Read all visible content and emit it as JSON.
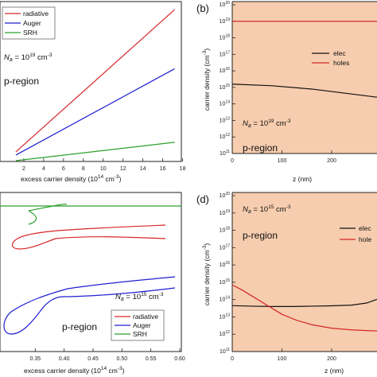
{
  "chart_data": [
    {
      "type": "line",
      "panel": "a",
      "xlabel": "excess carrier density (10",
      "xlabel_exp": "14",
      "xlabel_tail": " cm",
      "xlabel_unit_exp": "-3",
      "xlabel_close": ")",
      "xlim": [
        0,
        18
      ],
      "x_ticks": [
        "2",
        "4",
        "6",
        "8",
        "10",
        "12",
        "14",
        "16",
        "18"
      ],
      "annotation": {
        "prefix": "N",
        "sub": "a",
        "mid": " = 10",
        "sup": "19",
        "tail": " cm",
        "unit_sup": "-3"
      },
      "region_label": "p-region",
      "series": [
        {
          "name": "radiative",
          "color": "#d62728",
          "x": [
            1.2,
            17.2
          ],
          "y": [
            0.06,
            0.95
          ]
        },
        {
          "name": "Auger",
          "color": "#1f1fd1",
          "x": [
            1.2,
            17.2
          ],
          "y": [
            0.04,
            0.58
          ]
        },
        {
          "name": "SRH",
          "color": "#2ca02c",
          "x": [
            1.2,
            17.2
          ],
          "y": [
            0.005,
            0.12
          ]
        }
      ]
    },
    {
      "type": "line",
      "panel": "b",
      "panel_label": "(b)",
      "ylabel": "carrier density (cm",
      "ylabel_exp": "-3",
      "ylabel_close": ")",
      "xlabel": "z (nm)",
      "xlim": [
        0,
        320
      ],
      "ylim_log10": [
        11,
        20
      ],
      "x_ticks": [
        "0",
        "100",
        "200",
        "30"
      ],
      "y_ticks": [
        "20",
        "19",
        "18",
        "17",
        "16",
        "15",
        "14",
        "13",
        "12",
        "11"
      ],
      "y_tick_base": "10",
      "annotation": {
        "prefix": "N",
        "sub": "a",
        "mid": " = 10",
        "sup": "19",
        "tail": " cm",
        "unit_sup": "-3"
      },
      "region_label": "p-region",
      "legend_placement": "right",
      "series": [
        {
          "name": "elec",
          "color": "#111111",
          "x": [
            0,
            80,
            160,
            240,
            320
          ],
          "log10_y": [
            15.2,
            15.1,
            14.9,
            14.6,
            14.3
          ]
        },
        {
          "name": "holes",
          "color": "#d62728",
          "x": [
            0,
            320
          ],
          "log10_y": [
            19.0,
            19.0
          ]
        }
      ]
    },
    {
      "type": "line",
      "panel": "c",
      "xlabel": "excess carrier density (10",
      "xlabel_exp": "14",
      "xlabel_tail": " cm",
      "xlabel_unit_exp": "-3",
      "xlabel_close": ")",
      "xlim": [
        0.3,
        0.6
      ],
      "x_ticks": [
        "0.35",
        "0.40",
        "0.45",
        "0.50",
        "0.55",
        "0.60"
      ],
      "annotation": {
        "prefix": "N",
        "sub": "a",
        "mid": " = 10",
        "sup": "15",
        "tail": " cm",
        "unit_sup": "-3"
      },
      "region_label": "p-region",
      "legend_placement": "bottom-right",
      "series": [
        {
          "name": "radiative",
          "color": "#d62728"
        },
        {
          "name": "Auger",
          "color": "#1f1fd1"
        },
        {
          "name": "SRH",
          "color": "#2ca02c"
        }
      ]
    },
    {
      "type": "line",
      "panel": "d",
      "panel_label": "(d)",
      "ylabel": "carrier density (cm",
      "ylabel_exp": "-3",
      "ylabel_close": ")",
      "xlabel": "z (nm)",
      "xlim": [
        0,
        320
      ],
      "ylim_log10": [
        11,
        20
      ],
      "x_ticks": [
        "0",
        "100",
        "200",
        "3"
      ],
      "y_ticks": [
        "20",
        "19",
        "18",
        "17",
        "16",
        "15",
        "14",
        "13",
        "12",
        "11"
      ],
      "y_tick_base": "10",
      "annotation": {
        "prefix": "N",
        "sub": "a",
        "mid": " = 10",
        "sup": "15",
        "tail": " cm",
        "unit_sup": "-3"
      },
      "region_label": "p-region",
      "legend_placement": "right",
      "series": [
        {
          "name": "elec",
          "color": "#111111",
          "x": [
            0,
            40,
            80,
            120,
            160,
            200,
            240,
            270,
            300,
            320
          ],
          "log10_y": [
            13.65,
            13.62,
            13.6,
            13.6,
            13.62,
            13.64,
            13.68,
            13.8,
            14.1,
            14.6
          ]
        },
        {
          "name": "hole",
          "color": "#d62728",
          "x": [
            0,
            20,
            40,
            60,
            80,
            100,
            130,
            160,
            200,
            240,
            280,
            320
          ],
          "log10_y": [
            14.85,
            14.55,
            14.2,
            13.85,
            13.5,
            13.15,
            12.8,
            12.55,
            12.35,
            12.25,
            12.2,
            12.18
          ]
        }
      ]
    }
  ],
  "colors": {
    "p_region_fill": "#f6cdae",
    "axis": "#222222"
  }
}
